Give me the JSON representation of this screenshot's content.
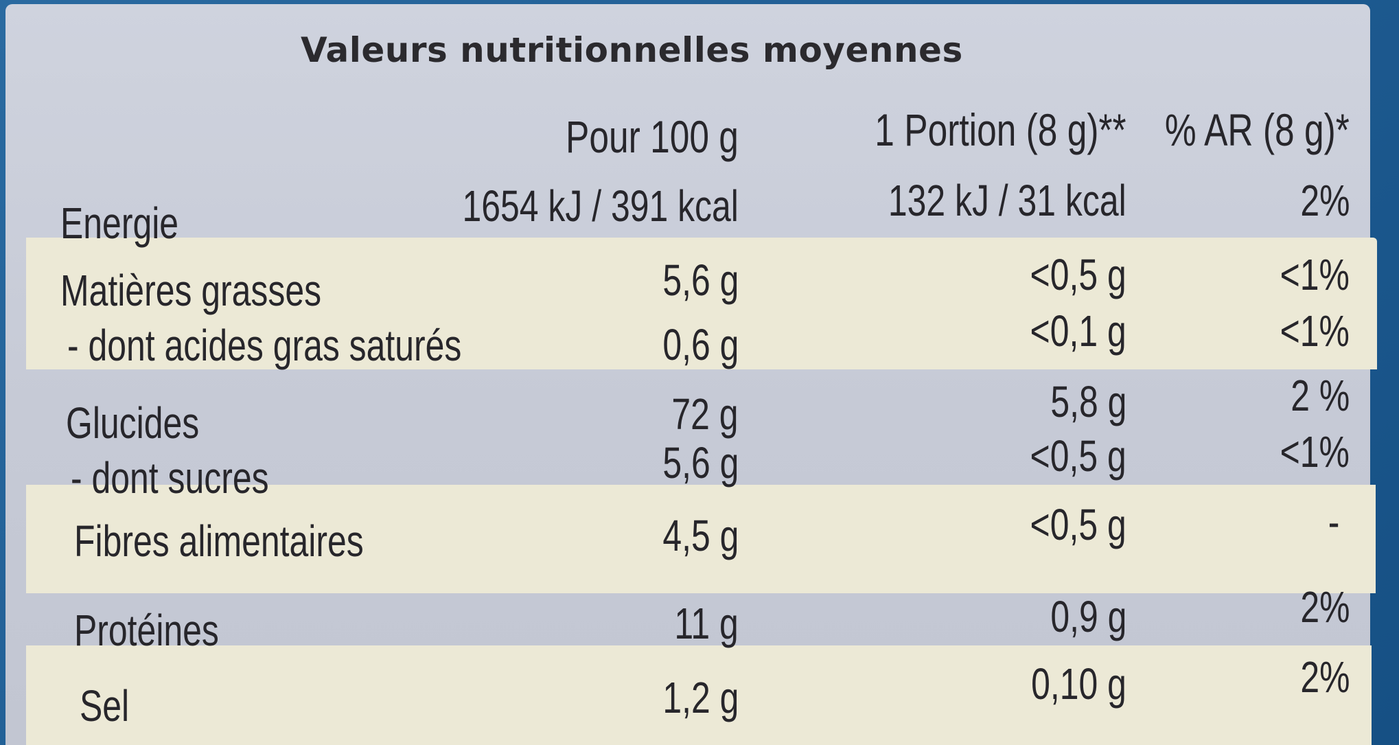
{
  "title": "Valeurs nutritionnelles moyennes",
  "columns": {
    "per100": "Pour 100 g",
    "portion": "1 Portion (8 g)**",
    "ar": "% AR (8 g)*"
  },
  "rows": [
    {
      "label": "Energie",
      "per100": "1654 kJ / 391 kcal",
      "portion": "132 kJ / 31 kcal",
      "ar": "2%"
    },
    {
      "label": "Matières grasses",
      "per100": "5,6 g",
      "portion": "<0,5 g",
      "ar": "<1%"
    },
    {
      "label": "- dont acides gras saturés",
      "per100": "0,6 g",
      "portion": "<0,1 g",
      "ar": "<1%"
    },
    {
      "label": "Glucides",
      "per100": "72 g",
      "portion": "5,8 g",
      "ar": "2 %"
    },
    {
      "label": "- dont sucres",
      "per100": "5,6 g",
      "portion": "<0,5 g",
      "ar": "<1%"
    },
    {
      "label": "Fibres alimentaires",
      "per100": "4,5 g",
      "portion": "<0,5 g",
      "ar": "-"
    },
    {
      "label": "Protéines",
      "per100": "11 g",
      "portion": "0,9 g",
      "ar": "2%"
    },
    {
      "label": "Sel",
      "per100": "1,2 g",
      "portion": "0,10 g",
      "ar": "2%"
    }
  ]
}
